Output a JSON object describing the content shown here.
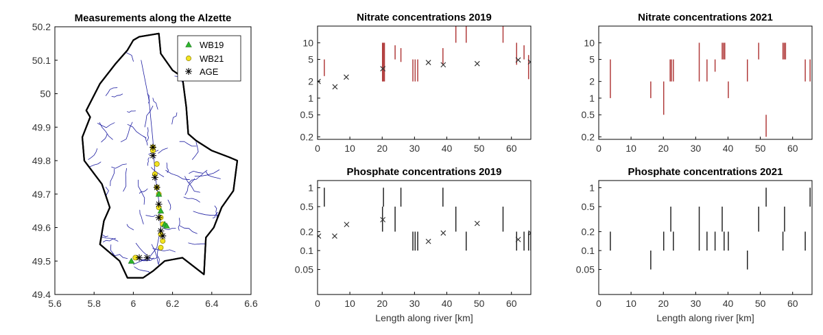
{
  "chart_data": [
    {
      "type": "map",
      "title": "Measurements along the Alzette",
      "xlim": [
        5.6,
        6.6
      ],
      "ylim": [
        49.4,
        50.2
      ],
      "xticks": [
        "5.6",
        "5.8",
        "6",
        "6.2",
        "6.4",
        "6.6"
      ],
      "yticks": [
        "49.4",
        "49.5",
        "49.6",
        "49.7",
        "49.8",
        "49.9",
        "50",
        "50.1",
        "50.2"
      ],
      "legend": [
        "WB19",
        "WB21",
        "AGE"
      ],
      "colors": {
        "border": "#000000",
        "rivers": "#1a1aa0",
        "wb19": "#2db82d",
        "wb21": "#f2e420",
        "age": "#000000"
      },
      "border": [
        [
          6.03,
          50.17
        ],
        [
          6.13,
          50.18
        ],
        [
          6.14,
          50.12
        ],
        [
          6.2,
          50.07
        ],
        [
          6.25,
          50.05
        ],
        [
          6.27,
          49.96
        ],
        [
          6.28,
          49.88
        ],
        [
          6.32,
          49.86
        ],
        [
          6.4,
          49.83
        ],
        [
          6.49,
          49.81
        ],
        [
          6.53,
          49.8
        ],
        [
          6.51,
          49.71
        ],
        [
          6.45,
          49.66
        ],
        [
          6.41,
          49.6
        ],
        [
          6.37,
          49.57
        ],
        [
          6.36,
          49.46
        ],
        [
          6.25,
          49.51
        ],
        [
          6.16,
          49.5
        ],
        [
          6.1,
          49.47
        ],
        [
          6.05,
          49.45
        ],
        [
          5.97,
          49.45
        ],
        [
          5.93,
          49.5
        ],
        [
          5.83,
          49.55
        ],
        [
          5.85,
          49.62
        ],
        [
          5.88,
          49.66
        ],
        [
          5.84,
          49.73
        ],
        [
          5.75,
          49.8
        ],
        [
          5.74,
          49.87
        ],
        [
          5.78,
          49.93
        ],
        [
          5.76,
          49.95
        ],
        [
          5.83,
          50.03
        ],
        [
          5.91,
          50.09
        ],
        [
          5.97,
          50.13
        ],
        [
          6.0,
          50.16
        ]
      ],
      "wb19": [
        [
          6.13,
          49.7
        ],
        [
          6.14,
          49.65
        ],
        [
          6.16,
          49.61
        ],
        [
          6.17,
          49.605
        ],
        [
          5.99,
          49.5
        ]
      ],
      "wb21": [
        [
          6.1,
          49.84
        ],
        [
          6.1,
          49.83
        ],
        [
          6.12,
          49.79
        ],
        [
          6.11,
          49.76
        ],
        [
          6.12,
          49.72
        ],
        [
          6.13,
          49.7
        ],
        [
          6.13,
          49.66
        ],
        [
          6.14,
          49.63
        ],
        [
          6.15,
          49.61
        ],
        [
          6.14,
          49.58
        ],
        [
          6.15,
          49.56
        ],
        [
          6.14,
          49.54
        ],
        [
          6.01,
          49.51
        ]
      ],
      "age": [
        [
          6.1,
          49.84
        ],
        [
          6.1,
          49.815
        ],
        [
          6.11,
          49.75
        ],
        [
          6.12,
          49.72
        ],
        [
          6.13,
          49.67
        ],
        [
          6.13,
          49.63
        ],
        [
          6.14,
          49.59
        ],
        [
          6.15,
          49.575
        ],
        [
          6.03,
          49.51
        ],
        [
          6.07,
          49.51
        ]
      ]
    },
    {
      "type": "vertical-range",
      "title": "Nitrate concentrations 2019",
      "xlim": [
        0,
        66
      ],
      "ylim": [
        0.18,
        20
      ],
      "yscale": "log",
      "xticks": [
        "0",
        "10",
        "20",
        "30",
        "40",
        "50",
        "60"
      ],
      "yticks": [
        "0.2",
        "0.5",
        "1",
        "2",
        "5",
        "10"
      ],
      "series": [
        {
          "name": "measurement ranges",
          "color": "#b03a3a",
          "ranges": [
            [
              2.1,
              2.5,
              5.0
            ],
            [
              20.1,
              2.0,
              10.0
            ],
            [
              20.4,
              2.0,
              10.0
            ],
            [
              20.7,
              2.0,
              10.0
            ],
            [
              24.0,
              5.0,
              9.0
            ],
            [
              25.8,
              4.5,
              8.0
            ],
            [
              29.5,
              2.0,
              5.0
            ],
            [
              30.2,
              2.0,
              5.0
            ],
            [
              31.0,
              2.0,
              5.0
            ],
            [
              38.8,
              4.0,
              8.0
            ],
            [
              42.8,
              10.0,
              20.0
            ],
            [
              46.0,
              10.0,
              20.0
            ],
            [
              57.4,
              10.0,
              20.0
            ],
            [
              61.6,
              4.0,
              10.0
            ],
            [
              63.9,
              5.0,
              9.0
            ],
            [
              65.3,
              2.2,
              6.0
            ]
          ]
        },
        {
          "name": "AGE",
          "color": "#333333",
          "points": [
            [
              0.2,
              2.0
            ],
            [
              5.4,
              1.6
            ],
            [
              8.9,
              2.4
            ],
            [
              20.2,
              3.4
            ],
            [
              34.3,
              4.4
            ],
            [
              38.9,
              4.0
            ],
            [
              49.4,
              4.2
            ],
            [
              62.1,
              4.9
            ],
            [
              65.9,
              4.5
            ]
          ]
        }
      ]
    },
    {
      "type": "vertical-range",
      "title": "Nitrate concentrations 2021",
      "xlim": [
        0,
        66
      ],
      "ylim": [
        0.18,
        20
      ],
      "yscale": "log",
      "xticks": [
        "0",
        "10",
        "20",
        "30",
        "40",
        "50",
        "60"
      ],
      "yticks": [
        "0.2",
        "0.5",
        "1",
        "2",
        "5",
        "10"
      ],
      "series": [
        {
          "name": "measurement ranges",
          "color": "#b03a3a",
          "ranges": [
            [
              3.6,
              1.0,
              5.0
            ],
            [
              16.1,
              1.0,
              2.0
            ],
            [
              20.1,
              0.5,
              2.0
            ],
            [
              22.1,
              2.0,
              5.0
            ],
            [
              22.5,
              2.0,
              5.0
            ],
            [
              23.1,
              2.0,
              5.0
            ],
            [
              31.1,
              2.0,
              10.0
            ],
            [
              33.5,
              2.0,
              5.0
            ],
            [
              36.0,
              3.0,
              5.0
            ],
            [
              38.2,
              5.0,
              10.0
            ],
            [
              38.6,
              5.0,
              10.0
            ],
            [
              39.0,
              5.0,
              10.0
            ],
            [
              40.1,
              1.0,
              2.0
            ],
            [
              46.0,
              2.0,
              5.0
            ],
            [
              49.5,
              5.0,
              10.0
            ],
            [
              51.8,
              0.2,
              0.5
            ],
            [
              57.0,
              5.0,
              10.0
            ],
            [
              57.4,
              5.0,
              10.0
            ],
            [
              57.8,
              5.0,
              10.0
            ],
            [
              63.9,
              2.0,
              5.0
            ],
            [
              65.4,
              2.0,
              5.0
            ]
          ]
        }
      ]
    },
    {
      "type": "vertical-range",
      "title": "Phosphate concentrations 2019",
      "xlabel": "Length along river [km]",
      "xlim": [
        0,
        66
      ],
      "ylim": [
        0.02,
        1.3
      ],
      "yscale": "log",
      "xticks": [
        "0",
        "10",
        "20",
        "30",
        "40",
        "50",
        "60"
      ],
      "yticks": [
        "0.05",
        "0.1",
        "0.2",
        "0.5",
        "1"
      ],
      "series": [
        {
          "name": "measurement ranges",
          "color": "#222222",
          "ranges": [
            [
              2.1,
              0.5,
              1.0
            ],
            [
              20.1,
              0.2,
              0.5
            ],
            [
              20.4,
              0.5,
              1.0
            ],
            [
              24.0,
              0.2,
              0.5
            ],
            [
              25.8,
              0.5,
              1.0
            ],
            [
              29.5,
              0.1,
              0.2
            ],
            [
              30.2,
              0.1,
              0.2
            ],
            [
              31.0,
              0.1,
              0.2
            ],
            [
              38.8,
              0.5,
              1.0
            ],
            [
              42.8,
              0.2,
              0.5
            ],
            [
              46.0,
              0.1,
              0.2
            ],
            [
              57.4,
              0.2,
              0.5
            ],
            [
              61.6,
              0.1,
              0.2
            ],
            [
              63.9,
              0.1,
              0.2
            ],
            [
              65.3,
              0.1,
              0.2
            ],
            [
              66.0,
              0.1,
              0.2
            ]
          ]
        },
        {
          "name": "AGE",
          "color": "#333333",
          "points": [
            [
              0.3,
              0.17
            ],
            [
              5.3,
              0.17
            ],
            [
              9.0,
              0.26
            ],
            [
              20.2,
              0.31
            ],
            [
              34.3,
              0.14
            ],
            [
              38.9,
              0.19
            ],
            [
              49.4,
              0.27
            ],
            [
              62.1,
              0.15
            ],
            [
              66.0,
              0.19
            ]
          ]
        }
      ]
    },
    {
      "type": "vertical-range",
      "title": "Phosphate concentrations 2021",
      "xlabel": "Length along river [km]",
      "xlim": [
        0,
        66
      ],
      "ylim": [
        0.02,
        1.3
      ],
      "yscale": "log",
      "xticks": [
        "0",
        "10",
        "20",
        "30",
        "40",
        "50",
        "60"
      ],
      "yticks": [
        "0.05",
        "0.1",
        "0.2",
        "0.5",
        "1"
      ],
      "series": [
        {
          "name": "measurement ranges",
          "color": "#222222",
          "ranges": [
            [
              3.6,
              0.1,
              0.2
            ],
            [
              16.1,
              0.05,
              0.1
            ],
            [
              20.1,
              0.1,
              0.2
            ],
            [
              22.3,
              0.2,
              0.5
            ],
            [
              23.1,
              0.1,
              0.2
            ],
            [
              31.1,
              0.1,
              0.5
            ],
            [
              33.5,
              0.1,
              0.2
            ],
            [
              36.0,
              0.1,
              0.2
            ],
            [
              38.2,
              0.2,
              0.5
            ],
            [
              38.8,
              0.1,
              0.2
            ],
            [
              40.1,
              0.1,
              0.2
            ],
            [
              46.0,
              0.05,
              0.1
            ],
            [
              49.5,
              0.2,
              0.5
            ],
            [
              51.8,
              0.5,
              1.0
            ],
            [
              57.0,
              0.1,
              0.2
            ],
            [
              57.5,
              0.2,
              0.5
            ],
            [
              63.9,
              0.1,
              0.2
            ],
            [
              65.4,
              0.5,
              1.0
            ]
          ]
        }
      ]
    }
  ]
}
